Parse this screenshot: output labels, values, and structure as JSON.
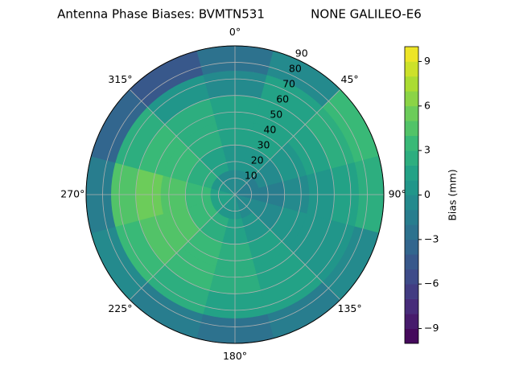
{
  "chart_data": {
    "type": "polar-contour",
    "title": "Antenna Phase Biases: BVMTN531",
    "subtitle": "NONE GALILEO-E6",
    "rlim": [
      0,
      90
    ],
    "rticks": [
      10,
      20,
      30,
      40,
      50,
      60,
      70,
      80,
      90
    ],
    "thetaticks": [
      {
        "value": 0,
        "label": "0°"
      },
      {
        "value": 45,
        "label": "45°"
      },
      {
        "value": 90,
        "label": "90°"
      },
      {
        "value": 135,
        "label": "135°"
      },
      {
        "value": 180,
        "label": "180°"
      },
      {
        "value": 225,
        "label": "225°"
      },
      {
        "value": 270,
        "label": "270°"
      },
      {
        "value": 315,
        "label": "315°"
      }
    ],
    "grid": true,
    "r_bins": [
      0,
      15,
      30,
      45,
      60,
      75,
      90
    ],
    "theta_bins": [
      -15,
      15,
      45,
      75,
      105,
      135,
      165,
      195,
      225,
      255,
      285,
      315,
      345
    ],
    "z": [
      [
        -1,
        -1,
        -2,
        -2,
        -1,
        -1,
        0,
        0,
        1,
        1,
        0,
        -1
      ],
      [
        0,
        0,
        -1,
        -2,
        -1,
        0,
        1,
        2,
        3,
        3,
        2,
        1
      ],
      [
        1,
        1,
        0,
        -1,
        0,
        1,
        2,
        3,
        4,
        4,
        3,
        2
      ],
      [
        1,
        1,
        1,
        0,
        0,
        1,
        2,
        3,
        4,
        5,
        3,
        2
      ],
      [
        -1,
        1,
        2,
        1,
        0,
        1,
        1,
        2,
        3,
        4,
        2,
        0
      ],
      [
        -3,
        -1,
        3,
        2,
        -1,
        -2,
        -3,
        -2,
        -1,
        -2,
        -4,
        -5
      ]
    ],
    "colorbar": {
      "label": "Bias (mm)",
      "lim": [
        -10,
        10
      ],
      "level_step": 1,
      "ticks": [
        {
          "value": -9,
          "label": "−9"
        },
        {
          "value": -6,
          "label": "−6"
        },
        {
          "value": -3,
          "label": "−3"
        },
        0,
        3,
        6,
        9
      ],
      "colormap": "viridis"
    }
  }
}
